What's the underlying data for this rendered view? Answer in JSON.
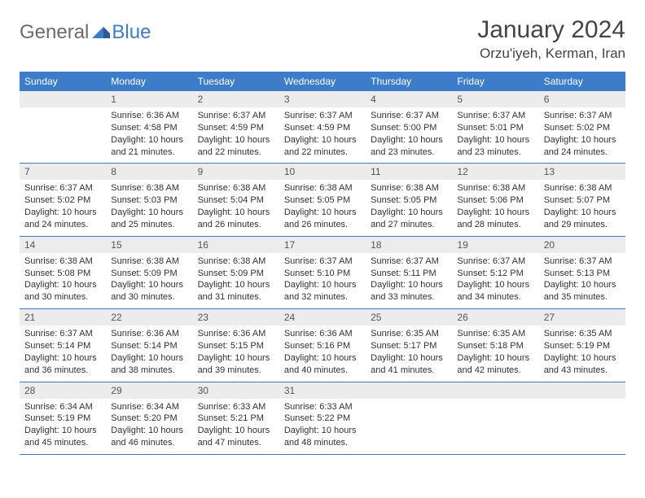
{
  "logo": {
    "part1": "General",
    "part2": "Blue"
  },
  "title": "January 2024",
  "location": "Orzu'iyeh, Kerman, Iran",
  "colors": {
    "header_bg": "#3d7cc9",
    "header_text": "#ffffff",
    "daynum_bg": "#ececec",
    "body_text": "#333333",
    "logo_gray": "#6b6b6b",
    "logo_blue": "#3d7cc9"
  },
  "weekdays": [
    "Sunday",
    "Monday",
    "Tuesday",
    "Wednesday",
    "Thursday",
    "Friday",
    "Saturday"
  ],
  "weeks": [
    [
      null,
      {
        "n": "1",
        "sr": "6:36 AM",
        "ss": "4:58 PM",
        "dl": "10 hours and 21 minutes."
      },
      {
        "n": "2",
        "sr": "6:37 AM",
        "ss": "4:59 PM",
        "dl": "10 hours and 22 minutes."
      },
      {
        "n": "3",
        "sr": "6:37 AM",
        "ss": "4:59 PM",
        "dl": "10 hours and 22 minutes."
      },
      {
        "n": "4",
        "sr": "6:37 AM",
        "ss": "5:00 PM",
        "dl": "10 hours and 23 minutes."
      },
      {
        "n": "5",
        "sr": "6:37 AM",
        "ss": "5:01 PM",
        "dl": "10 hours and 23 minutes."
      },
      {
        "n": "6",
        "sr": "6:37 AM",
        "ss": "5:02 PM",
        "dl": "10 hours and 24 minutes."
      }
    ],
    [
      {
        "n": "7",
        "sr": "6:37 AM",
        "ss": "5:02 PM",
        "dl": "10 hours and 24 minutes."
      },
      {
        "n": "8",
        "sr": "6:38 AM",
        "ss": "5:03 PM",
        "dl": "10 hours and 25 minutes."
      },
      {
        "n": "9",
        "sr": "6:38 AM",
        "ss": "5:04 PM",
        "dl": "10 hours and 26 minutes."
      },
      {
        "n": "10",
        "sr": "6:38 AM",
        "ss": "5:05 PM",
        "dl": "10 hours and 26 minutes."
      },
      {
        "n": "11",
        "sr": "6:38 AM",
        "ss": "5:05 PM",
        "dl": "10 hours and 27 minutes."
      },
      {
        "n": "12",
        "sr": "6:38 AM",
        "ss": "5:06 PM",
        "dl": "10 hours and 28 minutes."
      },
      {
        "n": "13",
        "sr": "6:38 AM",
        "ss": "5:07 PM",
        "dl": "10 hours and 29 minutes."
      }
    ],
    [
      {
        "n": "14",
        "sr": "6:38 AM",
        "ss": "5:08 PM",
        "dl": "10 hours and 30 minutes."
      },
      {
        "n": "15",
        "sr": "6:38 AM",
        "ss": "5:09 PM",
        "dl": "10 hours and 30 minutes."
      },
      {
        "n": "16",
        "sr": "6:38 AM",
        "ss": "5:09 PM",
        "dl": "10 hours and 31 minutes."
      },
      {
        "n": "17",
        "sr": "6:37 AM",
        "ss": "5:10 PM",
        "dl": "10 hours and 32 minutes."
      },
      {
        "n": "18",
        "sr": "6:37 AM",
        "ss": "5:11 PM",
        "dl": "10 hours and 33 minutes."
      },
      {
        "n": "19",
        "sr": "6:37 AM",
        "ss": "5:12 PM",
        "dl": "10 hours and 34 minutes."
      },
      {
        "n": "20",
        "sr": "6:37 AM",
        "ss": "5:13 PM",
        "dl": "10 hours and 35 minutes."
      }
    ],
    [
      {
        "n": "21",
        "sr": "6:37 AM",
        "ss": "5:14 PM",
        "dl": "10 hours and 36 minutes."
      },
      {
        "n": "22",
        "sr": "6:36 AM",
        "ss": "5:14 PM",
        "dl": "10 hours and 38 minutes."
      },
      {
        "n": "23",
        "sr": "6:36 AM",
        "ss": "5:15 PM",
        "dl": "10 hours and 39 minutes."
      },
      {
        "n": "24",
        "sr": "6:36 AM",
        "ss": "5:16 PM",
        "dl": "10 hours and 40 minutes."
      },
      {
        "n": "25",
        "sr": "6:35 AM",
        "ss": "5:17 PM",
        "dl": "10 hours and 41 minutes."
      },
      {
        "n": "26",
        "sr": "6:35 AM",
        "ss": "5:18 PM",
        "dl": "10 hours and 42 minutes."
      },
      {
        "n": "27",
        "sr": "6:35 AM",
        "ss": "5:19 PM",
        "dl": "10 hours and 43 minutes."
      }
    ],
    [
      {
        "n": "28",
        "sr": "6:34 AM",
        "ss": "5:19 PM",
        "dl": "10 hours and 45 minutes."
      },
      {
        "n": "29",
        "sr": "6:34 AM",
        "ss": "5:20 PM",
        "dl": "10 hours and 46 minutes."
      },
      {
        "n": "30",
        "sr": "6:33 AM",
        "ss": "5:21 PM",
        "dl": "10 hours and 47 minutes."
      },
      {
        "n": "31",
        "sr": "6:33 AM",
        "ss": "5:22 PM",
        "dl": "10 hours and 48 minutes."
      },
      null,
      null,
      null
    ]
  ]
}
